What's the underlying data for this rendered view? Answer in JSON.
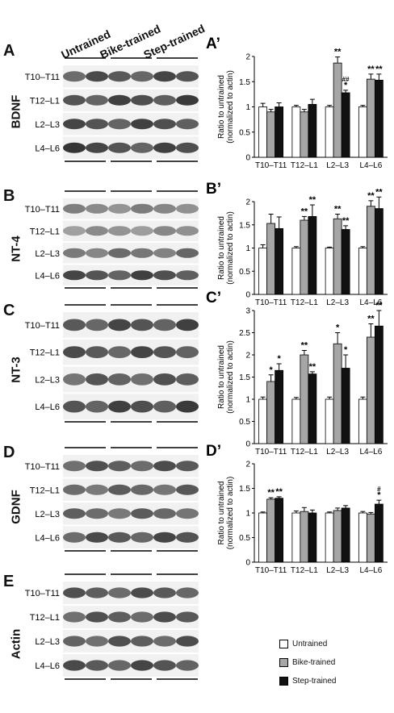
{
  "columns": [
    "Untrained",
    "Bike-trained",
    "Step-trained"
  ],
  "panels": {
    "A": {
      "letter": "A",
      "protein": "BDNF"
    },
    "B": {
      "letter": "B",
      "protein": "NT-4"
    },
    "C": {
      "letter": "C",
      "protein": "NT-3"
    },
    "D": {
      "letter": "D",
      "protein": "GDNF"
    },
    "E": {
      "letter": "E",
      "protein": "Actin"
    }
  },
  "segments": [
    "T10–T11",
    "T12–L1",
    "L2–L3",
    "L4–L6"
  ],
  "legend": {
    "untrained": {
      "label": "Untrained",
      "color": "#ffffff"
    },
    "bike": {
      "label": "Bike-trained",
      "color": "#a6a6a6"
    },
    "step": {
      "label": "Step-trained",
      "color": "#111111"
    }
  },
  "chart_data": [
    {
      "type": "bar",
      "panel_label": "A’",
      "ylabel": "Ratio to untrained\n(normalized to actin)",
      "ylim": [
        0,
        2
      ],
      "yticks": [
        0,
        0.5,
        1,
        1.5,
        2
      ],
      "categories": [
        "T10–T11",
        "T12–L1",
        "L2–L3",
        "L4–L6"
      ],
      "series": [
        {
          "name": "Untrained",
          "values": [
            1.0,
            1.0,
            1.0,
            1.0
          ],
          "errors": [
            0.07,
            0.03,
            0.03,
            0.03
          ]
        },
        {
          "name": "Bike-trained",
          "values": [
            0.9,
            0.9,
            1.87,
            1.55
          ],
          "errors": [
            0.05,
            0.05,
            0.12,
            0.1
          ]
        },
        {
          "name": "Step-trained",
          "values": [
            1.0,
            1.05,
            1.28,
            1.53
          ],
          "errors": [
            0.08,
            0.1,
            0.05,
            0.12
          ]
        }
      ],
      "annotations": [
        {
          "category": 2,
          "series": 1,
          "text": "**"
        },
        {
          "category": 2,
          "series": 2,
          "text": "*"
        },
        {
          "category": 2,
          "series": 2,
          "text": "##"
        },
        {
          "category": 3,
          "series": 1,
          "text": "**"
        },
        {
          "category": 3,
          "series": 2,
          "text": "**"
        }
      ]
    },
    {
      "type": "bar",
      "panel_label": "B’",
      "ylabel": "Ratio to untrained\n(normalized to actin)",
      "ylim": [
        0,
        2
      ],
      "yticks": [
        0,
        0.5,
        1,
        1.5,
        2
      ],
      "categories": [
        "T10–T11",
        "T12–L1",
        "L2–L3",
        "L4–L6"
      ],
      "series": [
        {
          "name": "Untrained",
          "values": [
            1.0,
            1.0,
            1.0,
            1.0
          ],
          "errors": [
            0.07,
            0.03,
            0.02,
            0.03
          ]
        },
        {
          "name": "Bike-trained",
          "values": [
            1.53,
            1.6,
            1.63,
            1.9
          ],
          "errors": [
            0.2,
            0.08,
            0.1,
            0.12
          ]
        },
        {
          "name": "Step-trained",
          "values": [
            1.42,
            1.68,
            1.4,
            1.85
          ],
          "errors": [
            0.25,
            0.25,
            0.08,
            0.25
          ]
        }
      ],
      "annotations": [
        {
          "category": 1,
          "series": 1,
          "text": "**"
        },
        {
          "category": 1,
          "series": 2,
          "text": "**"
        },
        {
          "category": 2,
          "series": 1,
          "text": "**"
        },
        {
          "category": 2,
          "series": 2,
          "text": "**"
        },
        {
          "category": 3,
          "series": 1,
          "text": "**"
        },
        {
          "category": 3,
          "series": 2,
          "text": "**"
        }
      ]
    },
    {
      "type": "bar",
      "panel_label": "C’",
      "ylabel": "Ratio to untrained\n(normalized to actin)",
      "ylim": [
        0,
        3
      ],
      "yticks": [
        0,
        0.5,
        1,
        1.5,
        2,
        2.5,
        3
      ],
      "categories": [
        "T10–T11",
        "T12–L1",
        "L2–L3",
        "L4–L6"
      ],
      "series": [
        {
          "name": "Untrained",
          "values": [
            1.0,
            1.0,
            1.0,
            1.0
          ],
          "errors": [
            0.05,
            0.04,
            0.05,
            0.05
          ]
        },
        {
          "name": "Bike-trained",
          "values": [
            1.4,
            2.0,
            2.25,
            2.4
          ],
          "errors": [
            0.15,
            0.1,
            0.25,
            0.3
          ]
        },
        {
          "name": "Step-trained",
          "values": [
            1.65,
            1.57,
            1.7,
            2.65
          ],
          "errors": [
            0.15,
            0.05,
            0.3,
            0.35
          ]
        }
      ],
      "annotations": [
        {
          "category": 0,
          "series": 1,
          "text": "*"
        },
        {
          "category": 0,
          "series": 2,
          "text": "*"
        },
        {
          "category": 1,
          "series": 1,
          "text": "**"
        },
        {
          "category": 1,
          "series": 2,
          "text": "**"
        },
        {
          "category": 2,
          "series": 1,
          "text": "*"
        },
        {
          "category": 2,
          "series": 2,
          "text": "*"
        },
        {
          "category": 3,
          "series": 1,
          "text": "**"
        },
        {
          "category": 3,
          "series": 2,
          "text": "**"
        }
      ]
    },
    {
      "type": "bar",
      "panel_label": "D’",
      "ylabel": "Ratio to untrained\n(normalized to actin)",
      "ylim": [
        0,
        2
      ],
      "yticks": [
        0,
        0.5,
        1,
        1.5,
        2
      ],
      "categories": [
        "T10–T11",
        "T12–L1",
        "L2–L3",
        "L4–L6"
      ],
      "series": [
        {
          "name": "Untrained",
          "values": [
            1.0,
            1.0,
            1.0,
            1.0
          ],
          "errors": [
            0.02,
            0.04,
            0.02,
            0.03
          ]
        },
        {
          "name": "Bike-trained",
          "values": [
            1.28,
            1.03,
            1.05,
            0.98
          ],
          "errors": [
            0.03,
            0.08,
            0.05,
            0.03
          ]
        },
        {
          "name": "Step-trained",
          "values": [
            1.3,
            1.0,
            1.1,
            1.18
          ],
          "errors": [
            0.03,
            0.06,
            0.05,
            0.08
          ]
        }
      ],
      "annotations": [
        {
          "category": 0,
          "series": 1,
          "text": "**"
        },
        {
          "category": 0,
          "series": 2,
          "text": "**"
        },
        {
          "category": 3,
          "series": 2,
          "text": "*"
        },
        {
          "category": 3,
          "series": 2,
          "text": "#"
        }
      ]
    }
  ]
}
